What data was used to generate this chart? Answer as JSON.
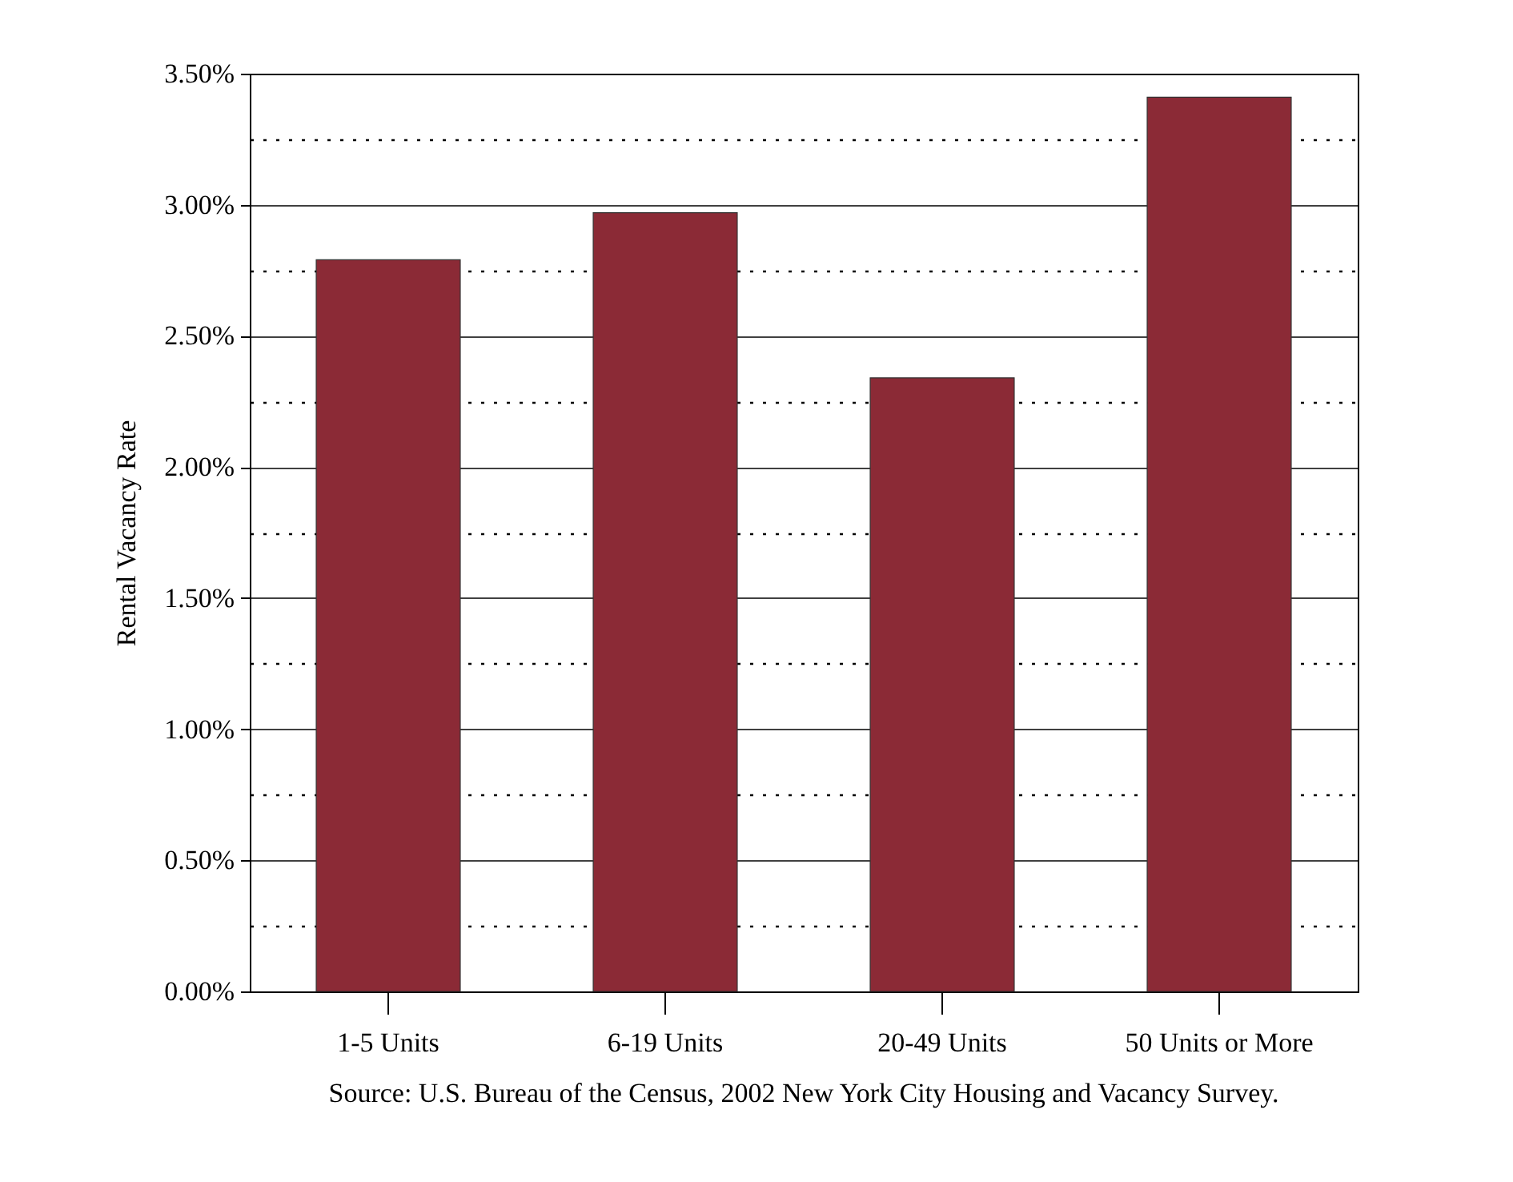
{
  "chart_data": {
    "type": "bar",
    "ylabel": "Rental Vacancy Rate",
    "categories": [
      "1-5 Units",
      "6-19 Units",
      "20-49 Units",
      "50 Units or More"
    ],
    "values": [
      2.79,
      2.97,
      2.34,
      3.41
    ],
    "color": "#8b2a36",
    "ylim": [
      0,
      3.5
    ],
    "yticks": [
      {
        "value": 0,
        "label": "0.00%"
      },
      {
        "value": 0.25,
        "label": null
      },
      {
        "value": 0.5,
        "label": "0.50%"
      },
      {
        "value": 0.75,
        "label": null
      },
      {
        "value": 1,
        "label": "1.00%"
      },
      {
        "value": 1.25,
        "label": null
      },
      {
        "value": 1.5,
        "label": "1.50%"
      },
      {
        "value": 1.75,
        "label": null
      },
      {
        "value": 2,
        "label": "2.00%"
      },
      {
        "value": 2.25,
        "label": null
      },
      {
        "value": 2.5,
        "label": "2.50%"
      },
      {
        "value": 2.75,
        "label": null
      },
      {
        "value": 3,
        "label": "3.00%"
      },
      {
        "value": 3.25,
        "label": null
      },
      {
        "value": 3.5,
        "label": "3.50%"
      }
    ],
    "grid": true,
    "annotations": [
      "Source: U.S. Bureau of the Census, 2002 New York City Housing and Vacancy Survey."
    ]
  }
}
